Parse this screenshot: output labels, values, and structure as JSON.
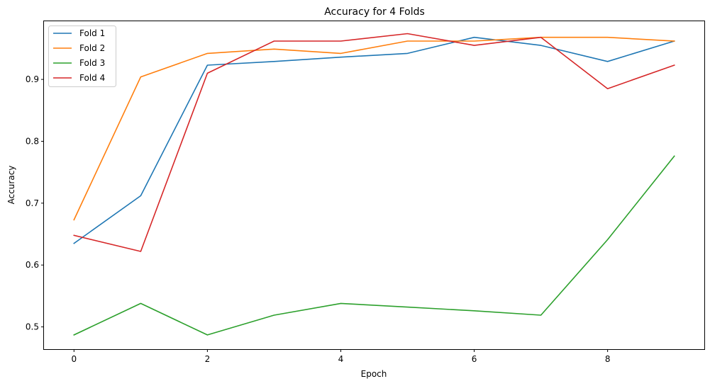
{
  "chart_data": {
    "type": "line",
    "title": "Accuracy for 4 Folds",
    "xlabel": "Epoch",
    "ylabel": "Accuracy",
    "xlim": [
      -0.45,
      9.45
    ],
    "ylim": [
      0.464,
      0.994
    ],
    "xticks": [
      0,
      2,
      4,
      6,
      8
    ],
    "yticks": [
      0.5,
      0.6,
      0.7,
      0.8,
      0.9
    ],
    "ytick_labels": [
      "0.5",
      "0.6",
      "0.7",
      "0.8",
      "0.9"
    ],
    "x": [
      0,
      1,
      2,
      3,
      4,
      5,
      6,
      7,
      8,
      9
    ],
    "series": [
      {
        "name": "Fold 1",
        "color": "#1f77b4",
        "values": [
          0.635,
          0.712,
          0.923,
          0.929,
          0.936,
          0.942,
          0.968,
          0.955,
          0.929,
          0.962
        ]
      },
      {
        "name": "Fold 2",
        "color": "#ff7f0e",
        "values": [
          0.673,
          0.904,
          0.942,
          0.949,
          0.942,
          0.962,
          0.962,
          0.968,
          0.968,
          0.962
        ]
      },
      {
        "name": "Fold 3",
        "color": "#2ca02c",
        "values": [
          0.487,
          0.538,
          0.487,
          0.519,
          0.538,
          0.532,
          0.526,
          0.519,
          0.641,
          0.776
        ]
      },
      {
        "name": "Fold 4",
        "color": "#d62728",
        "values": [
          0.648,
          0.622,
          0.91,
          0.962,
          0.962,
          0.974,
          0.955,
          0.968,
          0.885,
          0.923
        ]
      }
    ],
    "grid": false,
    "legend_position": "top-left"
  }
}
